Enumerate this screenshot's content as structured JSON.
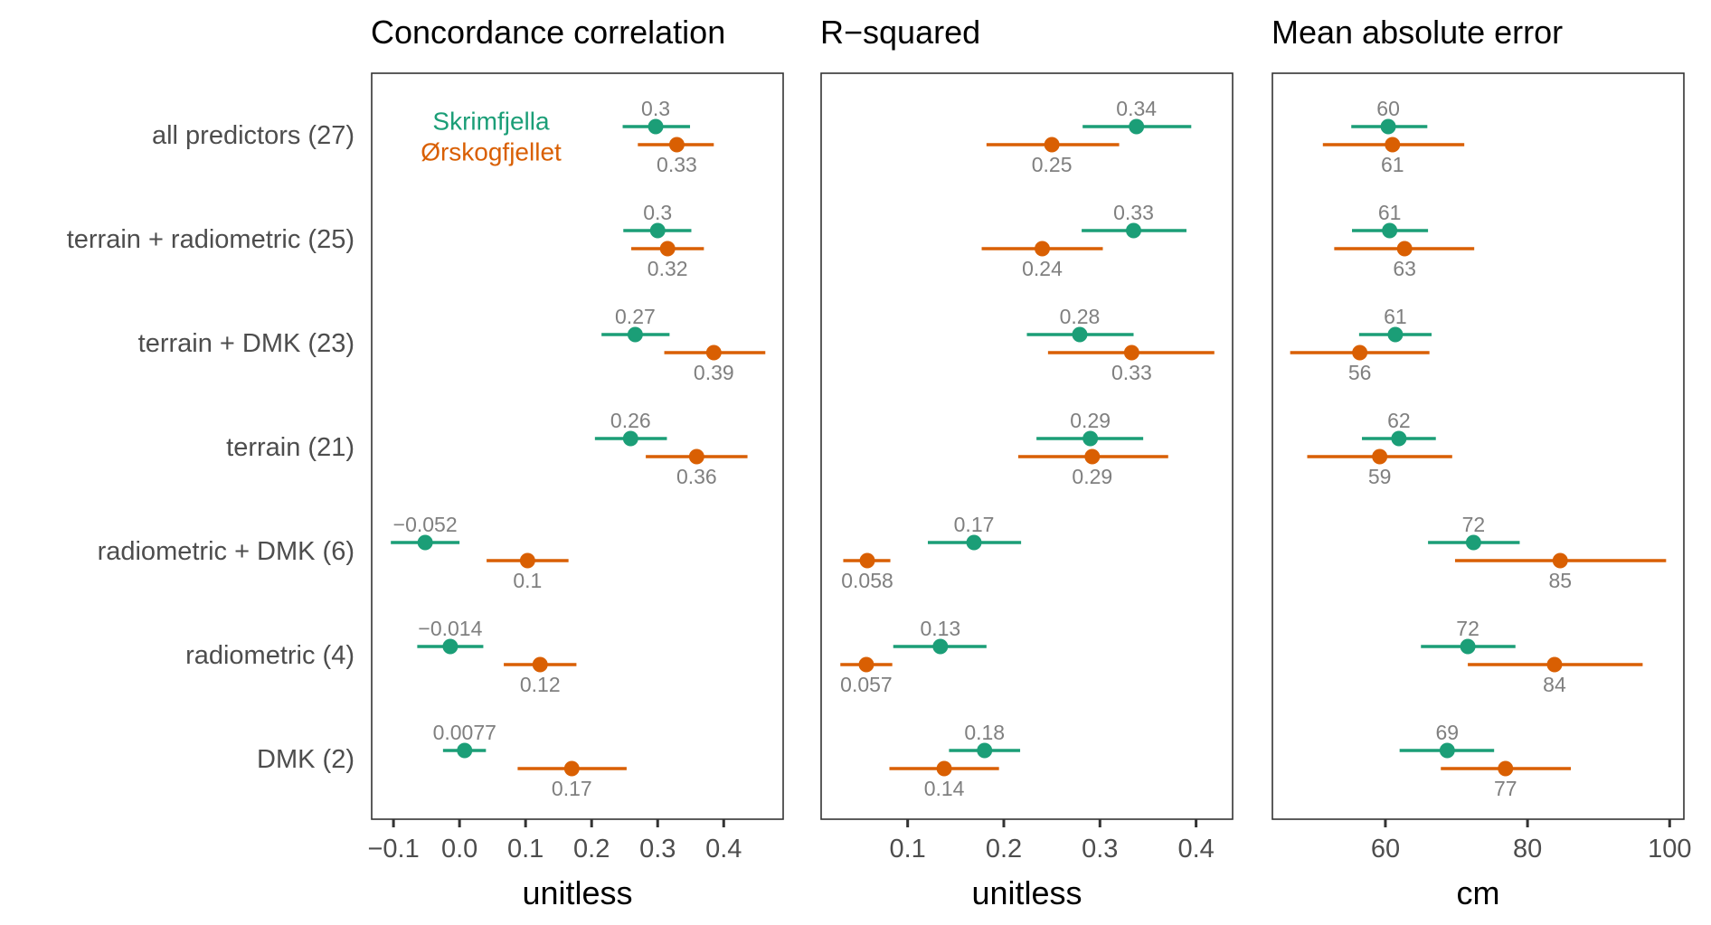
{
  "chart_data": {
    "type": "forest",
    "row_labels": [
      "all predictors (27)",
      "terrain + radiometric (25)",
      "terrain + DMK (23)",
      "terrain (21)",
      "radiometric + DMK (6)",
      "radiometric (4)",
      "DMK (2)"
    ],
    "legend": {
      "placement": "top-left",
      "entries": [
        {
          "name": "Skrimfjella",
          "color": "#1B9E77"
        },
        {
          "name": "Ørskogfjellet",
          "color": "#D95F02"
        }
      ]
    },
    "label_color": "#7f7f7f",
    "panels": [
      {
        "title": "Concordance correlation",
        "xlabel": "unitless",
        "xlim": [
          -0.133,
          0.49
        ],
        "ticks": [
          -0.1,
          0.0,
          0.1,
          0.2,
          0.3,
          0.4
        ],
        "tick_labels": [
          "−0.1",
          "0.0",
          "0.1",
          "0.2",
          "0.3",
          "0.4"
        ],
        "series": [
          {
            "name": "Skrimfjella",
            "estimates": [
              0.297,
              0.3,
              0.266,
              0.259,
              -0.052,
              -0.014,
              0.0077
            ],
            "lower": [
              0.247,
              0.248,
              0.215,
              0.205,
              -0.104,
              -0.064,
              -0.025
            ],
            "upper": [
              0.349,
              0.351,
              0.318,
              0.314,
              0.0,
              0.036,
              0.04
            ],
            "labels": [
              "0.3",
              "0.3",
              "0.27",
              "0.26",
              "−0.052",
              "−0.014",
              "0.0077"
            ]
          },
          {
            "name": "Ørskogfjellet",
            "estimates": [
              0.329,
              0.315,
              0.385,
              0.359,
              0.103,
              0.122,
              0.17
            ],
            "lower": [
              0.27,
              0.26,
              0.31,
              0.282,
              0.041,
              0.067,
              0.088
            ],
            "upper": [
              0.385,
              0.37,
              0.463,
              0.436,
              0.165,
              0.177,
              0.253
            ],
            "labels": [
              "0.33",
              "0.32",
              "0.39",
              "0.36",
              "0.1",
              "0.12",
              "0.17"
            ]
          }
        ]
      },
      {
        "title": "R−squared",
        "xlabel": "unitless",
        "xlim": [
          0.01,
          0.438
        ],
        "ticks": [
          0.1,
          0.2,
          0.3,
          0.4
        ],
        "tick_labels": [
          "0.1",
          "0.2",
          "0.3",
          "0.4"
        ],
        "series": [
          {
            "name": "Skrimfjella",
            "estimates": [
              0.338,
              0.335,
              0.279,
              0.29,
              0.169,
              0.134,
              0.18
            ],
            "lower": [
              0.282,
              0.281,
              0.224,
              0.234,
              0.121,
              0.085,
              0.143
            ],
            "upper": [
              0.395,
              0.39,
              0.335,
              0.345,
              0.218,
              0.182,
              0.217
            ],
            "labels": [
              "0.34",
              "0.33",
              "0.28",
              "0.29",
              "0.17",
              "0.13",
              "0.18"
            ]
          },
          {
            "name": "Ørskogfjellet",
            "estimates": [
              0.25,
              0.24,
              0.333,
              0.292,
              0.058,
              0.057,
              0.138
            ],
            "lower": [
              0.182,
              0.177,
              0.246,
              0.215,
              0.033,
              0.03,
              0.081
            ],
            "upper": [
              0.32,
              0.303,
              0.419,
              0.371,
              0.082,
              0.084,
              0.195
            ],
            "labels": [
              "0.25",
              "0.24",
              "0.33",
              "0.29",
              "0.058",
              "0.057",
              "0.14"
            ]
          }
        ]
      },
      {
        "title": "Mean absolute error",
        "xlabel": "cm",
        "xlim": [
          44.1,
          102.0
        ],
        "ticks": [
          60,
          80,
          100
        ],
        "tick_labels": [
          "60",
          "80",
          "100"
        ],
        "series": [
          {
            "name": "Skrimfjella",
            "estimates": [
              60.4,
              60.6,
              61.4,
              61.9,
              72.4,
              71.6,
              68.7
            ],
            "lower": [
              55.2,
              55.3,
              56.3,
              56.7,
              66.0,
              65.0,
              62.0
            ],
            "upper": [
              65.9,
              66.0,
              66.5,
              67.1,
              78.9,
              78.3,
              75.3
            ],
            "labels": [
              "60",
              "61",
              "61",
              "62",
              "72",
              "72",
              "69"
            ]
          },
          {
            "name": "Ørskogfjellet",
            "estimates": [
              61.0,
              62.7,
              56.4,
              59.2,
              84.6,
              83.8,
              76.9
            ],
            "lower": [
              51.2,
              52.8,
              46.6,
              49.0,
              69.8,
              71.6,
              67.8
            ],
            "upper": [
              71.1,
              72.5,
              66.2,
              69.4,
              99.5,
              96.2,
              86.1
            ],
            "labels": [
              "61",
              "63",
              "56",
              "59",
              "85",
              "84",
              "77"
            ]
          }
        ]
      }
    ]
  }
}
